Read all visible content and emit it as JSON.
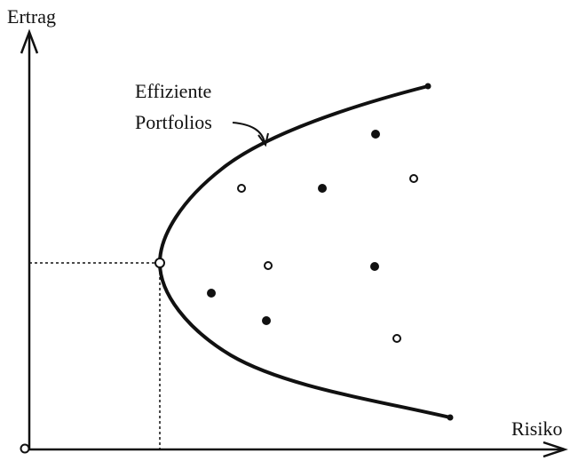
{
  "axes": {
    "y_label": "Ertrag",
    "x_label": "Risiko"
  },
  "annotation": {
    "lines": [
      "Effiziente",
      "Portfolios"
    ]
  }
}
